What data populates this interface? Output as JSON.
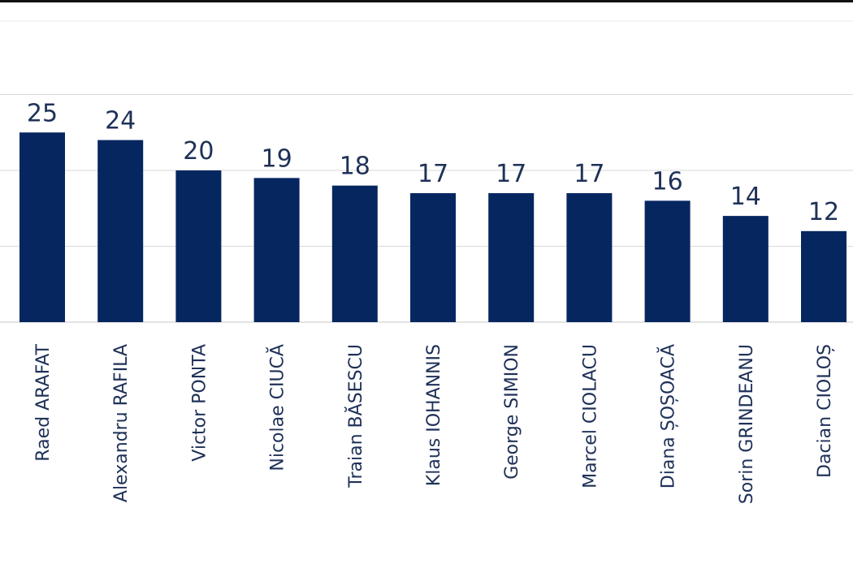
{
  "colors": {
    "bar": "#062660",
    "grid": "#d9d9d9",
    "label": "#1f3158",
    "top_rule": "#111111"
  },
  "chart_data": {
    "type": "bar",
    "categories": [
      "Raed ARAFAT",
      "Alexandru RAFILA",
      "Victor PONTA",
      "Nicolae CIUCĂ",
      "Traian BĂSESCU",
      "Klaus IOHANNIS",
      "George SIMION",
      "Marcel CIOLACU",
      "Diana ȘOȘOACĂ",
      "Sorin GRINDEANU",
      "Dacian CIOLOȘ"
    ],
    "values": [
      25,
      24,
      20,
      19,
      18,
      17,
      17,
      17,
      16,
      14,
      12
    ],
    "ylim": [
      0,
      30
    ],
    "grid": true,
    "data_labels": true,
    "label_orientation": "vertical"
  }
}
